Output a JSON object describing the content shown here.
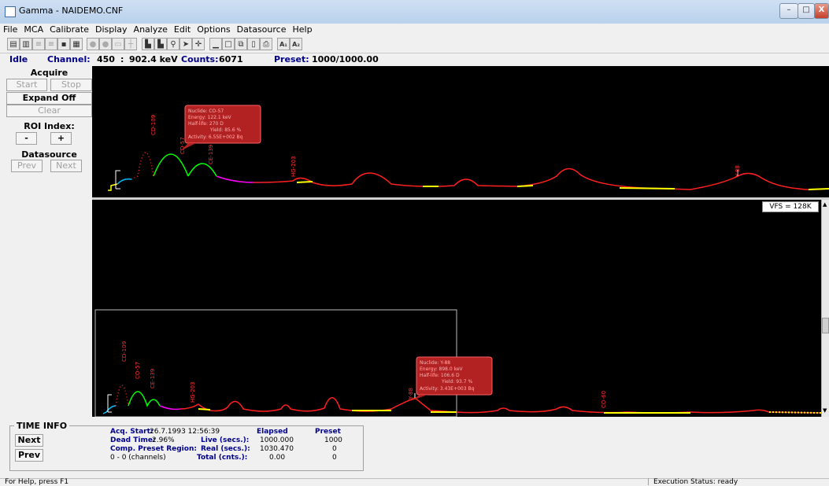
{
  "window": {
    "title": "Gamma - NAIDEMO.CNF",
    "minimize": "–",
    "maximize": "□",
    "close": "X"
  },
  "menu": [
    "File",
    "MCA",
    "Calibrate",
    "Display",
    "Analyze",
    "Edit",
    "Options",
    "Datasource",
    "Help"
  ],
  "toolbar": {
    "buttons": [
      "open",
      "save",
      "file-a",
      "file-b",
      "disk",
      "import",
      "start-acq",
      "stop-acq",
      "clear",
      "cursor",
      "zoom-in",
      "zoom-out",
      "search",
      "arrow",
      "plus",
      "minimize-spectrum",
      "restore-spectrum",
      "tile",
      "print-preview",
      "print"
    ],
    "ab1": "A₁",
    "ab2": "A₂"
  },
  "status": {
    "state": "Idle",
    "channel_label": "Channel:",
    "channel": "450",
    "separator": ":",
    "energy": "902.4 keV",
    "counts_label": "Counts:",
    "counts": "6071",
    "preset_label": "Preset:",
    "preset": "1000/1000.00"
  },
  "left_panel": {
    "acquire": "Acquire",
    "start": "Start",
    "stop": "Stop",
    "expand": "Expand Off",
    "clear": "Clear",
    "roi_index": "ROI Index:",
    "minus": "-",
    "plus": "+",
    "datasource": "Datasource",
    "prev": "Prev",
    "next": "Next"
  },
  "upper_spectrum": {
    "peaks": [
      "CD-109",
      "CD-57",
      "CE-139",
      "HG-203",
      "Y-88"
    ],
    "tooltip": {
      "lines": [
        "Nuclide: CO-57",
        "Energy: 122.1 keV",
        "Half-life: 270 D",
        "Yield: 85.6 %",
        "Activity: 6.55E+002 Bq"
      ]
    }
  },
  "lower_spectrum": {
    "vfs": "VFS = 128K",
    "peaks": [
      "CD-109",
      "CO-57",
      "CE-139",
      "HG-203",
      "Y-88",
      "CO-60"
    ],
    "tooltip": {
      "lines": [
        "Nuclide: Y-88",
        "Energy: 898.0 keV",
        "Half-life: 106.6 D",
        "Yield: 93.7 %",
        "Activity: 3.43E+003 Bq"
      ]
    }
  },
  "time_info": {
    "title": "TIME INFO",
    "next": "Next",
    "prev": "Prev",
    "acq_start_label": "Acq. Start:",
    "acq_start": "26.7.1993 12:56:39",
    "dead_time_label": "Dead Time:",
    "dead_time": "2.96%",
    "comp_preset_label": "Comp. Preset Region:",
    "comp_preset": "0 - 0 (channels)",
    "elapsed_header": "Elapsed",
    "preset_header": "Preset",
    "live_label": "Live (secs.):",
    "live_elapsed": "1000.000",
    "live_preset": "1000",
    "real_label": "Real (secs.):",
    "real_elapsed": "1030.470",
    "real_preset": "0",
    "total_label": "Total (cnts.):",
    "total_elapsed": "0.00",
    "total_preset": "0"
  },
  "statusbar": {
    "help": "For Help, press F1",
    "exec": "Execution Status: ready"
  }
}
